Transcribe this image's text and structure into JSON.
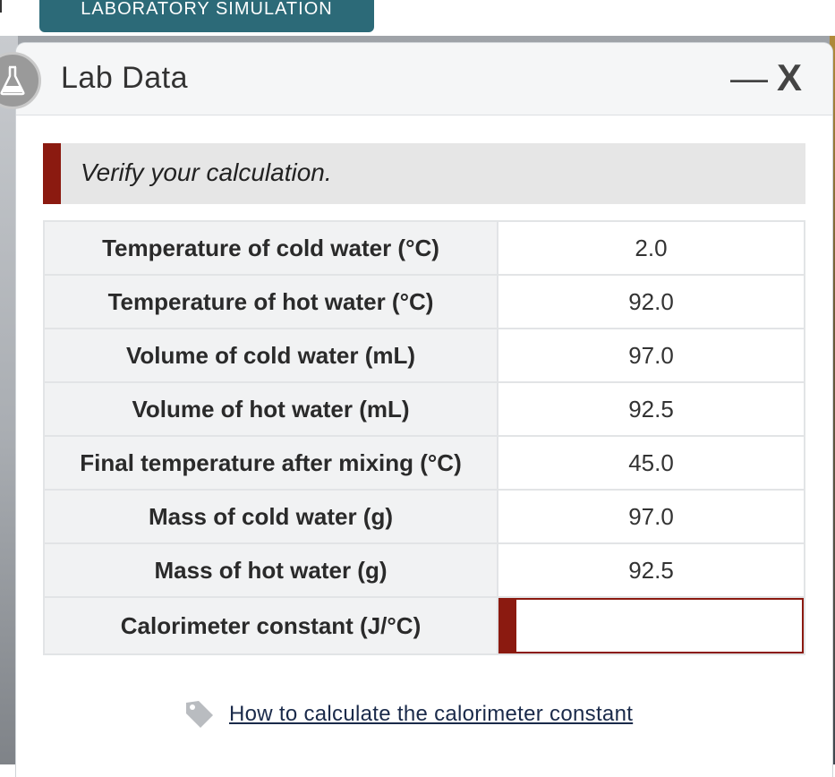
{
  "top_tab": {
    "label": "LABORATORY SIMULATION"
  },
  "window": {
    "title": "Lab Data",
    "minimize_label": "—",
    "close_label": "X",
    "badge_icon": "flask-icon"
  },
  "instruction": {
    "text": "Verify your calculation.",
    "accent_color": "#8b1a10"
  },
  "table": {
    "rows": [
      {
        "label": "Temperature of cold water (°C)",
        "value": "2.0"
      },
      {
        "label": "Temperature of hot water (°C)",
        "value": "92.0"
      },
      {
        "label": "Volume of cold water (mL)",
        "value": "97.0"
      },
      {
        "label": "Volume of hot water (mL)",
        "value": "92.5"
      },
      {
        "label": "Final temperature after mixing (°C)",
        "value": "45.0"
      },
      {
        "label": "Mass of cold water (g)",
        "value": "97.0"
      },
      {
        "label": "Mass of hot water (g)",
        "value": "92.5"
      }
    ],
    "input_row": {
      "label": "Calorimeter constant (J/°C)",
      "value": ""
    }
  },
  "help": {
    "icon": "tag-icon",
    "link_text": "How to calculate the calorimeter constant"
  },
  "colors": {
    "tab_bg": "#2c6a78",
    "accent": "#8b1a10",
    "header_bg": "#f5f6f7"
  }
}
